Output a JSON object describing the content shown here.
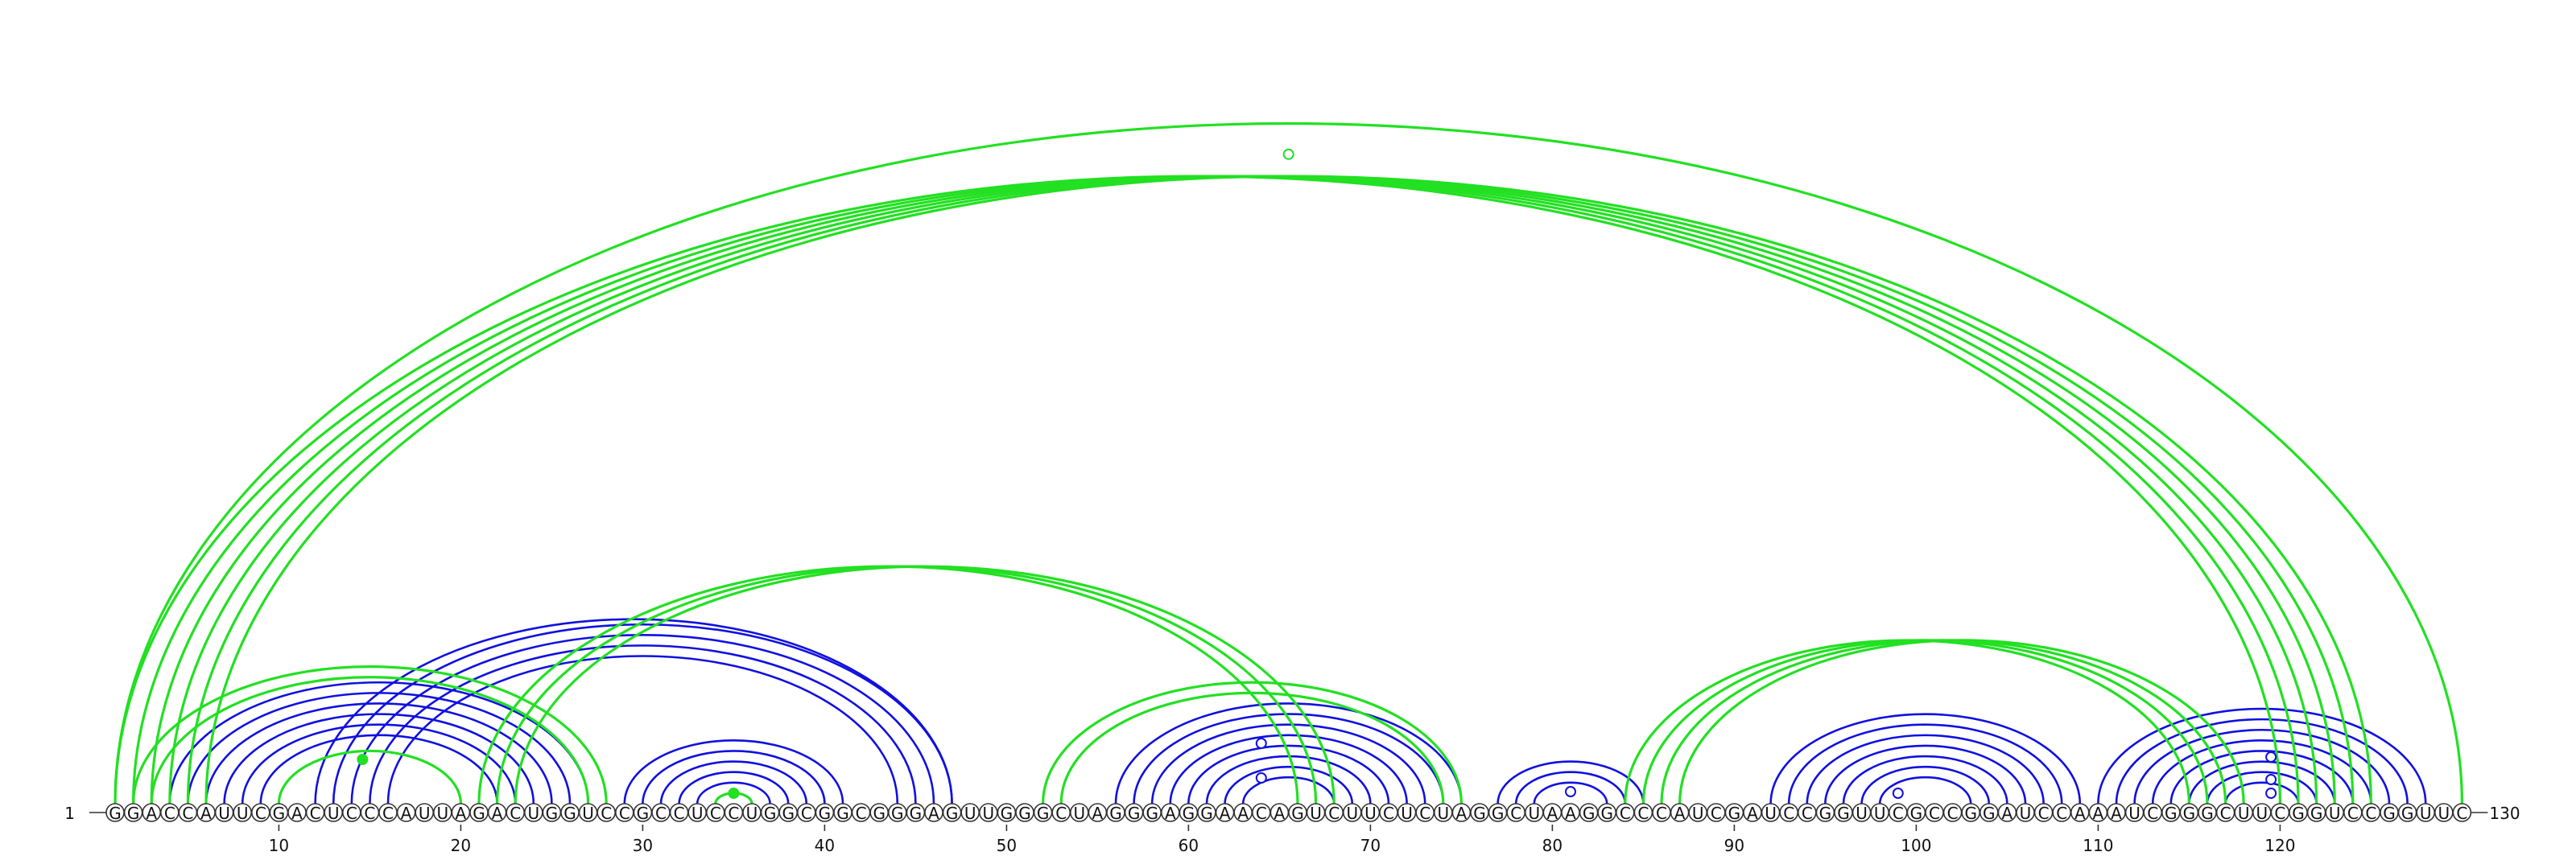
{
  "sequence": "GGACCAUUCGACUCCCAUUAGACUGGUCCGCCUCCUGGCGGCGGGAGUUGGGCUAGGGAGGAACAGUCUUCUCUAGGCUAAGGCCCAUCGAUCCGGUUCGCCGGAUCCAAAUCGGGCUUCGGUCCGGUUC",
  "length": 130,
  "start_label": "1",
  "end_label": "130",
  "tick_labels": [
    "10",
    "20",
    "30",
    "40",
    "50",
    "60",
    "70",
    "80",
    "90",
    "100",
    "110",
    "120"
  ],
  "colors": {
    "blue": "#1010e0",
    "green": "#22e022"
  },
  "legend": [],
  "arcs": {
    "blue": [
      [
        4,
        27
      ],
      [
        5,
        26
      ],
      [
        6,
        25
      ],
      [
        7,
        24
      ],
      [
        8,
        23
      ],
      [
        9,
        22
      ],
      [
        12,
        47
      ],
      [
        13,
        47
      ],
      [
        14,
        46
      ],
      [
        15,
        45
      ],
      [
        16,
        44
      ],
      [
        29,
        41
      ],
      [
        30,
        40
      ],
      [
        31,
        39
      ],
      [
        32,
        38
      ],
      [
        33,
        37
      ],
      [
        56,
        75
      ],
      [
        57,
        74
      ],
      [
        58,
        73
      ],
      [
        59,
        72
      ],
      [
        60,
        71
      ],
      [
        61,
        70
      ],
      [
        62,
        69
      ],
      [
        63,
        68
      ],
      [
        77,
        85
      ],
      [
        78,
        84
      ],
      [
        79,
        83
      ],
      [
        92,
        109
      ],
      [
        93,
        108
      ],
      [
        94,
        107
      ],
      [
        95,
        106
      ],
      [
        96,
        105
      ],
      [
        97,
        104
      ],
      [
        98,
        103
      ],
      [
        110,
        128
      ],
      [
        111,
        127
      ],
      [
        112,
        126
      ],
      [
        113,
        125
      ],
      [
        114,
        124
      ],
      [
        115,
        123
      ],
      [
        116,
        122
      ],
      [
        117,
        121
      ]
    ],
    "green": [
      [
        1,
        120
      ],
      [
        2,
        121
      ],
      [
        3,
        122
      ],
      [
        4,
        123
      ],
      [
        5,
        124
      ],
      [
        6,
        125
      ],
      [
        1,
        130
      ],
      [
        2,
        28
      ],
      [
        3,
        27
      ],
      [
        10,
        20
      ],
      [
        21,
        66
      ],
      [
        22,
        67
      ],
      [
        23,
        68
      ],
      [
        52,
        75
      ],
      [
        53,
        74
      ],
      [
        84,
        115
      ],
      [
        85,
        116
      ],
      [
        86,
        117
      ],
      [
        87,
        118
      ],
      [
        34,
        36
      ]
    ]
  },
  "markers": [
    {
      "pos": 14.6,
      "height": 55,
      "color": "green",
      "filled": true
    },
    {
      "pos": 35,
      "height": 13,
      "color": "green",
      "filled": true
    },
    {
      "pos": 65.5,
      "height": 0.95,
      "color": "green",
      "filled": false
    },
    {
      "pos": 64,
      "height": 75,
      "color": "blue",
      "filled": false
    },
    {
      "pos": 64,
      "height": 32,
      "color": "blue",
      "filled": false
    },
    {
      "pos": 81,
      "height": 15,
      "color": "blue",
      "filled": false
    },
    {
      "pos": 99,
      "height": 13,
      "color": "blue",
      "filled": false
    },
    {
      "pos": 119.5,
      "height": 58,
      "color": "blue",
      "filled": false
    },
    {
      "pos": 119.5,
      "height": 30,
      "color": "blue",
      "filled": false
    },
    {
      "pos": 119.5,
      "height": 13,
      "color": "blue",
      "filled": false
    }
  ]
}
